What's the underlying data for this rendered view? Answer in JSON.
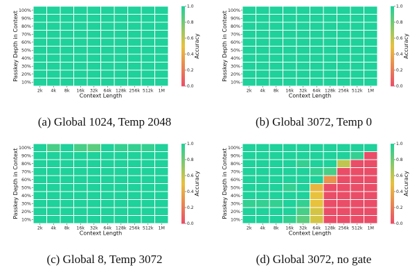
{
  "colors": {
    "high": "#1fd19a",
    "mid": "#e8c23c",
    "low": "#ea4d67",
    "cell_border": "#ffffff"
  },
  "panels": [
    {
      "caption": "(a) Global 1024, Temp 2048",
      "chart_data": {
        "type": "heatmap",
        "xlabel": "Context Length",
        "ylabel": "Passkey Depth in Context",
        "x_categories": [
          "2k",
          "4k",
          "8k",
          "16k",
          "32k",
          "64k",
          "128k",
          "256k",
          "512k",
          "1M"
        ],
        "y_categories": [
          "100%",
          "90%",
          "80%",
          "70%",
          "60%",
          "50%",
          "40%",
          "30%",
          "20%",
          "10%"
        ],
        "values": [
          [
            1,
            1,
            1,
            1,
            1,
            1,
            1,
            1,
            1,
            1
          ],
          [
            1,
            1,
            1,
            1,
            1,
            1,
            1,
            1,
            1,
            1
          ],
          [
            1,
            1,
            1,
            1,
            1,
            1,
            1,
            1,
            1,
            1
          ],
          [
            1,
            1,
            1,
            1,
            1,
            1,
            1,
            1,
            1,
            1
          ],
          [
            1,
            1,
            1,
            1,
            1,
            1,
            1,
            1,
            1,
            1
          ],
          [
            1,
            1,
            1,
            1,
            1,
            1,
            1,
            1,
            1,
            1
          ],
          [
            1,
            1,
            1,
            1,
            1,
            1,
            1,
            1,
            1,
            1
          ],
          [
            1,
            1,
            1,
            1,
            1,
            1,
            1,
            1,
            1,
            1
          ],
          [
            1,
            1,
            1,
            1,
            1,
            1,
            1,
            1,
            1,
            1
          ],
          [
            1,
            1,
            1,
            1,
            1,
            1,
            1,
            1,
            1,
            1
          ]
        ],
        "colorbar": {
          "label": "Accuracy",
          "range": [
            0.0,
            1.0
          ],
          "ticks": [
            "0.0",
            "0.2",
            "0.4",
            "0.6",
            "0.8",
            "1.0"
          ]
        }
      }
    },
    {
      "caption": "(b) Global 3072, Temp 0",
      "chart_data": {
        "type": "heatmap",
        "xlabel": "Context Length",
        "ylabel": "Passkey Depth in Context",
        "x_categories": [
          "2k",
          "4k",
          "8k",
          "16k",
          "32k",
          "64k",
          "128k",
          "256k",
          "512k",
          "1M"
        ],
        "y_categories": [
          "100%",
          "90%",
          "80%",
          "70%",
          "60%",
          "50%",
          "40%",
          "30%",
          "20%",
          "10%"
        ],
        "values": [
          [
            1,
            1,
            1,
            1,
            1,
            1,
            1,
            1,
            1,
            1
          ],
          [
            1,
            1,
            1,
            1,
            1,
            1,
            1,
            1,
            1,
            1
          ],
          [
            1,
            1,
            1,
            1,
            1,
            1,
            1,
            1,
            1,
            1
          ],
          [
            1,
            1,
            1,
            1,
            1,
            1,
            1,
            1,
            1,
            1
          ],
          [
            1,
            1,
            1,
            1,
            1,
            1,
            1,
            1,
            1,
            1
          ],
          [
            1,
            1,
            1,
            1,
            1,
            1,
            1,
            1,
            1,
            1
          ],
          [
            1,
            1,
            1,
            1,
            1,
            1,
            1,
            1,
            1,
            1
          ],
          [
            1,
            1,
            1,
            1,
            1,
            1,
            1,
            1,
            1,
            1
          ],
          [
            1,
            1,
            1,
            1,
            1,
            1,
            1,
            1,
            1,
            1
          ],
          [
            1,
            1,
            1,
            1,
            1,
            1,
            1,
            1,
            1,
            1
          ]
        ],
        "colorbar": {
          "label": "Accuracy",
          "range": [
            0.0,
            1.0
          ],
          "ticks": [
            "0.0",
            "0.2",
            "0.4",
            "0.6",
            "0.8",
            "1.0"
          ]
        }
      }
    },
    {
      "caption": "(c) Global 8, Temp 3072",
      "chart_data": {
        "type": "heatmap",
        "xlabel": "Context Length",
        "ylabel": "Passkey Depth in Context",
        "x_categories": [
          "2k",
          "4k",
          "8k",
          "16k",
          "32k",
          "64k",
          "128k",
          "256k",
          "512k",
          "1M"
        ],
        "y_categories": [
          "100%",
          "90%",
          "80%",
          "70%",
          "60%",
          "50%",
          "40%",
          "30%",
          "20%",
          "10%"
        ],
        "values": [
          [
            1,
            0.9,
            1,
            0.9,
            0.85,
            1,
            0.95,
            0.95,
            0.95,
            1
          ],
          [
            1,
            1,
            1,
            1,
            1,
            1,
            1,
            1,
            1,
            1
          ],
          [
            1,
            1,
            1,
            1,
            1,
            1,
            1,
            1,
            1,
            1
          ],
          [
            1,
            1,
            1,
            1,
            1,
            1,
            1,
            1,
            1,
            1
          ],
          [
            1,
            1,
            1,
            1,
            1,
            1,
            1,
            1,
            1,
            1
          ],
          [
            1,
            1,
            1,
            1,
            1,
            1,
            1,
            1,
            1,
            1
          ],
          [
            1,
            1,
            1,
            1,
            1,
            1,
            1,
            1,
            1,
            1
          ],
          [
            1,
            1,
            1,
            1,
            1,
            1,
            1,
            1,
            1,
            1
          ],
          [
            1,
            1,
            1,
            1,
            1,
            1,
            1,
            1,
            1,
            1
          ],
          [
            1,
            1,
            1,
            1,
            1,
            1,
            1,
            1,
            1,
            1
          ]
        ],
        "colorbar": {
          "label": "Accuracy",
          "range": [
            0.0,
            1.0
          ],
          "ticks": [
            "0.0",
            "0.2",
            "0.4",
            "0.6",
            "0.8",
            "1.0"
          ]
        }
      }
    },
    {
      "caption": "(d) Global 3072, no gate",
      "chart_data": {
        "type": "heatmap",
        "xlabel": "Context Length",
        "ylabel": "Passkey Depth in Context",
        "x_categories": [
          "2k",
          "4k",
          "8k",
          "16k",
          "32k",
          "64k",
          "128k",
          "256k",
          "512k",
          "1M"
        ],
        "y_categories": [
          "100%",
          "90%",
          "80%",
          "70%",
          "60%",
          "50%",
          "40%",
          "30%",
          "20%",
          "10%"
        ],
        "values": [
          [
            1,
            1,
            1,
            1,
            1,
            1,
            1,
            1,
            1,
            1
          ],
          [
            1,
            1,
            1,
            1,
            1,
            1,
            1,
            1,
            0.95,
            0
          ],
          [
            1,
            1,
            1,
            1,
            0.95,
            1,
            1,
            0.6,
            0,
            0
          ],
          [
            1,
            1,
            1,
            1,
            1,
            0.95,
            0.9,
            0,
            0,
            0
          ],
          [
            1,
            1,
            1,
            1,
            1,
            1,
            0.3,
            0,
            0,
            0
          ],
          [
            1,
            1,
            1,
            0.95,
            1,
            0.45,
            0,
            0,
            0,
            0
          ],
          [
            1,
            1,
            1,
            1,
            1,
            0.5,
            0,
            0,
            0,
            0
          ],
          [
            0.95,
            0.95,
            0.95,
            1,
            0.95,
            0.5,
            0,
            0,
            0,
            0
          ],
          [
            1,
            1,
            1,
            1,
            0.9,
            0.55,
            0,
            0,
            0,
            0
          ],
          [
            1,
            1,
            1,
            0.95,
            0.85,
            0.55,
            0,
            0,
            0,
            0
          ]
        ],
        "colorbar": {
          "label": "Accuracy",
          "range": [
            0.0,
            1.0
          ],
          "ticks": [
            "0.0",
            "0.2",
            "0.4",
            "0.6",
            "0.8",
            "1.0"
          ]
        }
      }
    }
  ]
}
